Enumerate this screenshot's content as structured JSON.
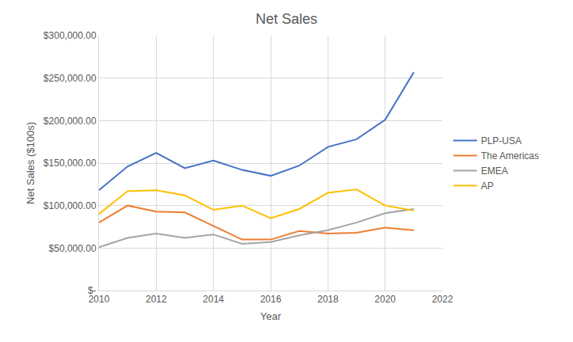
{
  "chart_data": {
    "type": "line",
    "title": "Net Sales",
    "x_label": "Year",
    "y_label": "Net Sales ($100s)",
    "x": [
      2010,
      2011,
      2012,
      2013,
      2014,
      2015,
      2016,
      2017,
      2018,
      2019,
      2020,
      2021
    ],
    "series": [
      {
        "name": "PLP-USA",
        "color": "#4472c4",
        "values": [
          118000,
          146000,
          162000,
          144000,
          153000,
          142000,
          135000,
          147000,
          169000,
          178000,
          201000,
          257000
        ]
      },
      {
        "name": "The Americas",
        "color": "#ed7d31",
        "values": [
          80000,
          100000,
          93000,
          92000,
          76000,
          60000,
          60000,
          70000,
          67000,
          68000,
          74000,
          71000
        ]
      },
      {
        "name": "EMEA",
        "color": "#a5a5a5",
        "values": [
          51000,
          62000,
          67000,
          62000,
          66000,
          55000,
          57000,
          65000,
          71000,
          80000,
          91000,
          96000
        ]
      },
      {
        "name": "AP",
        "color": "#ffc000",
        "values": [
          90000,
          117000,
          118000,
          112000,
          95000,
          100000,
          85000,
          96000,
          115000,
          119000,
          100000,
          94000
        ]
      }
    ],
    "xlim": [
      2010,
      2022
    ],
    "xticks": [
      2010,
      2012,
      2014,
      2016,
      2018,
      2020,
      2022
    ],
    "ylim": [
      0,
      300000
    ],
    "yticks": [
      {
        "value": 0,
        "label": "$-"
      },
      {
        "value": 50000,
        "label": "$50,000.00"
      },
      {
        "value": 100000,
        "label": "$100,000.00"
      },
      {
        "value": 150000,
        "label": "$150,000.00"
      },
      {
        "value": 200000,
        "label": "$200,000.00"
      },
      {
        "value": 250000,
        "label": "$250,000.00"
      },
      {
        "value": 300000,
        "label": "$300,000.00"
      }
    ],
    "grid": true,
    "legend": "right"
  }
}
